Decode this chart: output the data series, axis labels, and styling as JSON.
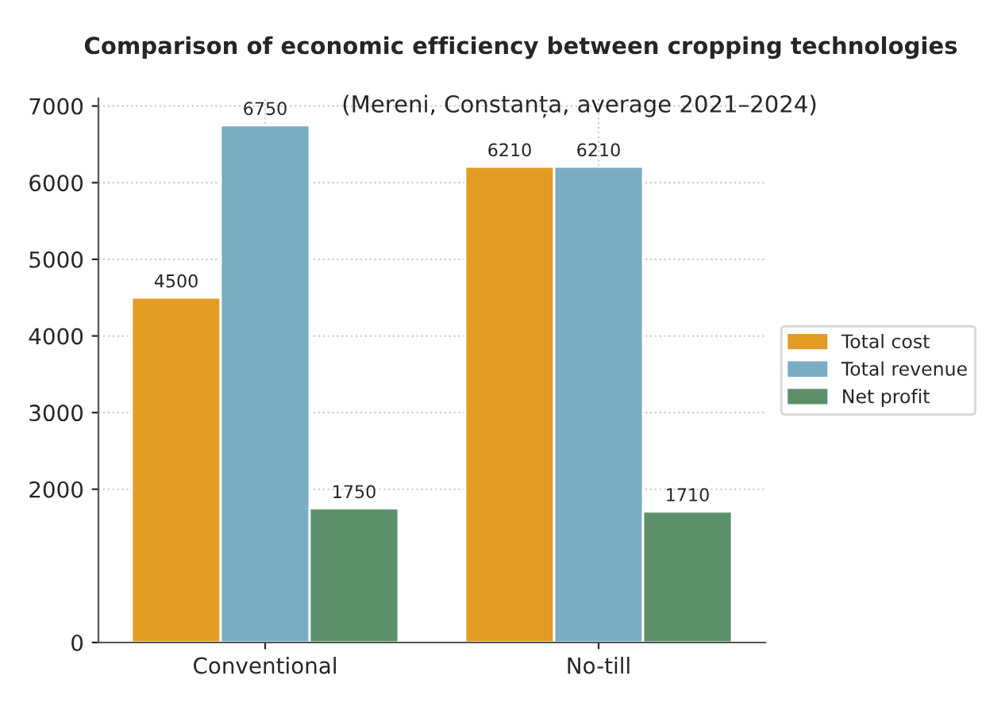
{
  "chart_data": {
    "type": "bar",
    "title": "Comparison of economic efficiency between cropping technologies",
    "subtitle": "(Mereni, Constanța, average 2021–2024)",
    "categories": [
      "Conventional",
      "No-till"
    ],
    "series": [
      {
        "name": "Total cost",
        "color": "#e39c23",
        "values": [
          4500,
          6210
        ]
      },
      {
        "name": "Total revenue",
        "color": "#7aacc4",
        "values": [
          6750,
          6210
        ]
      },
      {
        "name": "Net profit",
        "color": "#5c906a",
        "values": [
          1750,
          1710
        ]
      }
    ],
    "data_labels": true,
    "ylim": [
      0,
      7100
    ],
    "yticks": [
      0,
      2000,
      3000,
      4000,
      5000,
      6000,
      7000
    ],
    "grid": true,
    "legend": "right"
  }
}
